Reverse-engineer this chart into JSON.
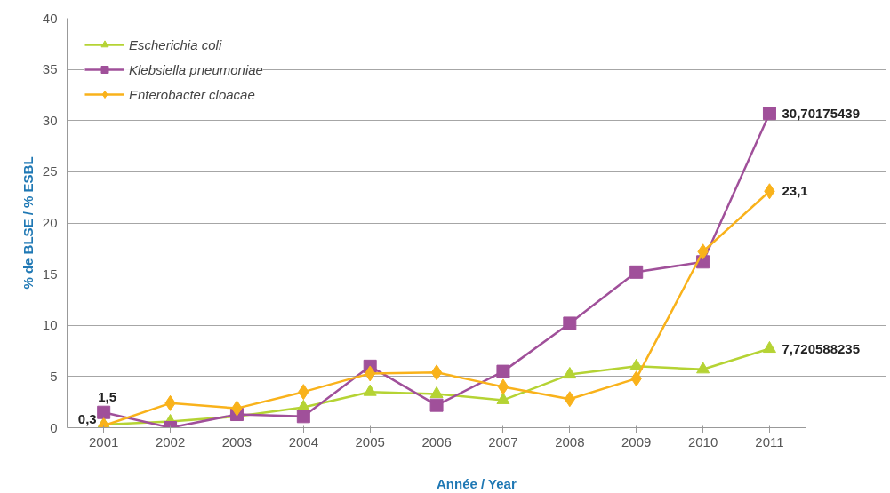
{
  "chart_data": {
    "type": "line",
    "xlabel": "Année / Year",
    "ylabel": "% de BLSE / % ESBL",
    "categories": [
      "2001",
      "2002",
      "2003",
      "2004",
      "2005",
      "2006",
      "2007",
      "2008",
      "2009",
      "2010",
      "2011"
    ],
    "ylim": [
      0,
      40
    ],
    "yticks": [
      0,
      5,
      10,
      15,
      20,
      25,
      30,
      35,
      40
    ],
    "grid": "y",
    "legend": "top left",
    "series": [
      {
        "name": "Escherichia coli",
        "color": "#b5d334",
        "marker": "triangle",
        "values": [
          0.3,
          0.6,
          1.1,
          2.0,
          3.5,
          3.3,
          2.7,
          5.2,
          6.0,
          5.7,
          7.720588235
        ],
        "value_labels": [
          "0,3",
          null,
          null,
          null,
          null,
          null,
          null,
          null,
          null,
          null,
          "7,720588235"
        ]
      },
      {
        "name": "Klebsiella pneumoniae",
        "color": "#a0509a",
        "marker": "square",
        "values": [
          1.5,
          0.0,
          1.3,
          1.1,
          6.0,
          2.2,
          5.5,
          10.2,
          15.2,
          16.2,
          30.70175439
        ],
        "value_labels": [
          "1,5",
          null,
          null,
          null,
          null,
          null,
          null,
          null,
          null,
          null,
          "30,70175439"
        ]
      },
      {
        "name": "Enterobacter cloacae",
        "color": "#f9b21b",
        "marker": "diamond",
        "values": [
          0.2,
          2.4,
          1.9,
          3.5,
          5.3,
          5.4,
          4.0,
          2.8,
          4.8,
          17.2,
          23.1
        ],
        "value_labels": [
          null,
          null,
          null,
          null,
          null,
          null,
          null,
          null,
          null,
          null,
          "23,1"
        ]
      }
    ]
  }
}
